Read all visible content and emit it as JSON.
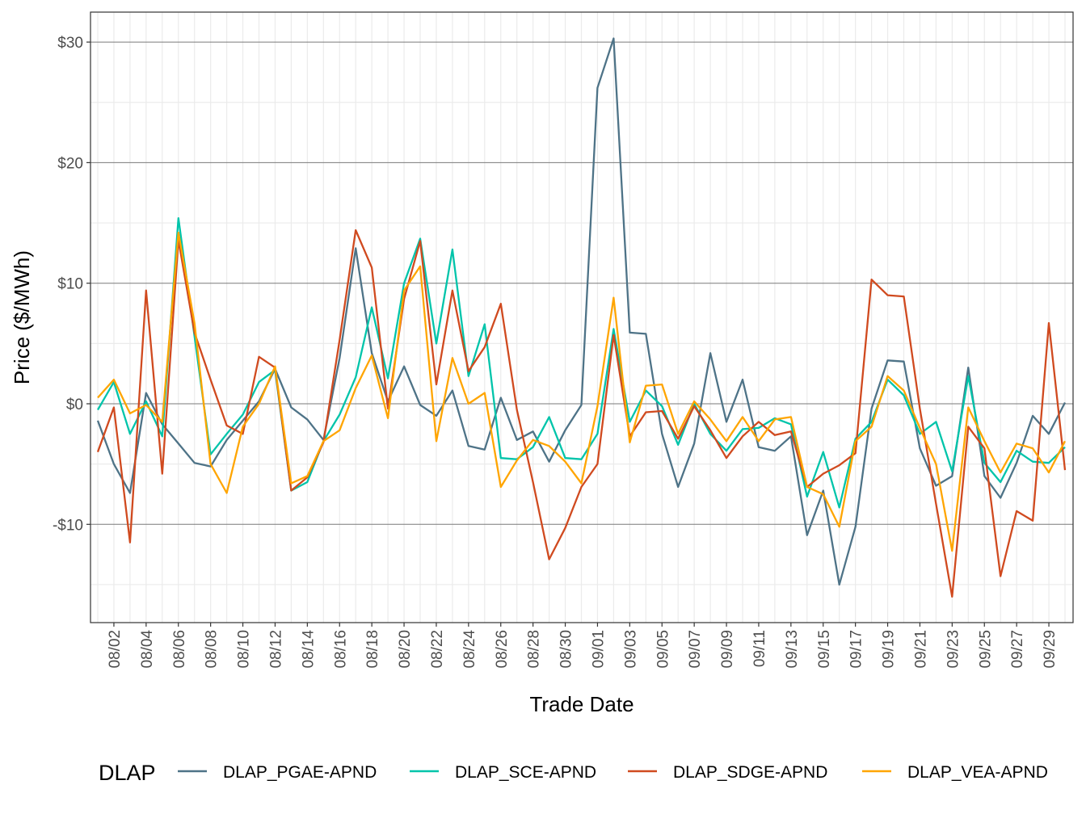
{
  "chart_data": {
    "type": "line",
    "title": "",
    "xlabel": "Trade Date",
    "ylabel": "Price ($/MWh)",
    "ylim": [
      -18,
      32
    ],
    "y_ticks": [
      -10,
      0,
      10,
      20,
      30
    ],
    "y_tick_labels": [
      "-$10",
      "$0",
      "$10",
      "$20",
      "$30"
    ],
    "grid": true,
    "legend_title": "DLAP",
    "legend_position": "bottom",
    "x": [
      "08/01",
      "08/02",
      "08/03",
      "08/04",
      "08/05",
      "08/06",
      "08/07",
      "08/08",
      "08/09",
      "08/10",
      "08/11",
      "08/12",
      "08/13",
      "08/14",
      "08/15",
      "08/16",
      "08/17",
      "08/18",
      "08/19",
      "08/20",
      "08/21",
      "08/22",
      "08/23",
      "08/24",
      "08/25",
      "08/26",
      "08/27",
      "08/28",
      "08/29",
      "08/30",
      "08/31",
      "09/01",
      "09/02",
      "09/03",
      "09/04",
      "09/05",
      "09/06",
      "09/07",
      "09/08",
      "09/09",
      "09/10",
      "09/11",
      "09/12",
      "09/13",
      "09/14",
      "09/15",
      "09/16",
      "09/17",
      "09/18",
      "09/19",
      "09/20",
      "09/21",
      "09/22",
      "09/23",
      "09/24",
      "09/25",
      "09/26",
      "09/27",
      "09/28",
      "09/29",
      "09/30"
    ],
    "x_tick_labels": [
      "08/02",
      "08/04",
      "08/06",
      "08/08",
      "08/10",
      "08/12",
      "08/14",
      "08/16",
      "08/18",
      "08/20",
      "08/22",
      "08/24",
      "08/26",
      "08/28",
      "08/30",
      "09/01",
      "09/03",
      "09/05",
      "09/07",
      "09/09",
      "09/11",
      "09/13",
      "09/15",
      "09/17",
      "09/19",
      "09/21",
      "09/23",
      "09/25",
      "09/27",
      "09/29"
    ],
    "series": [
      {
        "name": "DLAP_PGAE-APND",
        "color": "#4E7387",
        "values": [
          -1.4,
          -5.0,
          -7.4,
          0.9,
          -1.7,
          -3.3,
          -4.9,
          -5.2,
          -3.0,
          -1.4,
          0.2,
          2.9,
          -0.3,
          -1.3,
          -3.0,
          3.8,
          12.9,
          4.2,
          0.2,
          3.1,
          -0.1,
          -1.0,
          1.1,
          -3.5,
          -3.8,
          0.5,
          -3.0,
          -2.3,
          -4.8,
          -2.2,
          -0.1,
          26.2,
          30.3,
          5.9,
          5.8,
          -2.5,
          -6.9,
          -3.3,
          4.2,
          -1.5,
          2.0,
          -3.6,
          -3.9,
          -2.7,
          -10.9,
          -7.2,
          -15.0,
          -10.2,
          -0.4,
          3.6,
          3.5,
          -3.7,
          -6.8,
          -6.0,
          3.0,
          -6.0,
          -7.8,
          -4.9,
          -1.0,
          -2.5,
          0.1
        ]
      },
      {
        "name": "DLAP_SCE-APND",
        "color": "#00C4AA",
        "values": [
          -0.5,
          1.8,
          -2.5,
          0.2,
          -2.7,
          15.4,
          5.6,
          -4.2,
          -2.5,
          -0.9,
          1.8,
          2.8,
          -7.2,
          -6.5,
          -3.1,
          -0.9,
          2.2,
          8.0,
          2.1,
          10.0,
          13.7,
          5.0,
          12.8,
          2.3,
          6.6,
          -4.5,
          -4.6,
          -3.6,
          -1.1,
          -4.5,
          -4.6,
          -2.5,
          6.2,
          -1.5,
          1.1,
          -0.2,
          -3.4,
          0.0,
          -2.5,
          -3.9,
          -2.1,
          -2.0,
          -1.2,
          -1.7,
          -7.7,
          -4.0,
          -8.6,
          -2.9,
          -1.5,
          2.0,
          0.7,
          -2.5,
          -1.5,
          -5.6,
          2.3,
          -4.9,
          -6.5,
          -3.9,
          -4.8,
          -4.9,
          -3.6
        ]
      },
      {
        "name": "DLAP_SDGE-APND",
        "color": "#D04A1F",
        "values": [
          -4.0,
          -0.3,
          -11.5,
          9.4,
          -5.8,
          13.6,
          5.9,
          2.0,
          -1.8,
          -2.5,
          3.9,
          3.0,
          -7.2,
          -6.1,
          -3.2,
          5.3,
          14.4,
          11.3,
          -0.4,
          8.7,
          13.5,
          1.6,
          9.4,
          2.7,
          4.7,
          8.3,
          -0.5,
          -6.5,
          -12.9,
          -10.3,
          -6.9,
          -5.0,
          5.7,
          -2.7,
          -0.7,
          -0.6,
          -2.9,
          -0.2,
          -2.2,
          -4.5,
          -2.7,
          -1.5,
          -2.6,
          -2.3,
          -6.9,
          -5.8,
          -5.1,
          -4.1,
          10.3,
          9.0,
          8.9,
          -0.4,
          -8.3,
          -16.0,
          -1.9,
          -3.7,
          -14.3,
          -8.9,
          -9.7,
          6.7,
          -5.5
        ]
      },
      {
        "name": "DLAP_VEA-APND",
        "color": "#FFA500",
        "values": [
          0.5,
          2.0,
          -0.8,
          -0.1,
          -1.5,
          14.2,
          6.7,
          -5.0,
          -7.4,
          -1.9,
          0.0,
          3.1,
          -6.6,
          -6.0,
          -3.1,
          -2.2,
          1.3,
          4.0,
          -1.2,
          9.4,
          11.4,
          -3.1,
          3.8,
          0.0,
          0.9,
          -6.9,
          -4.7,
          -3.0,
          -3.5,
          -4.8,
          -6.6,
          -0.2,
          8.8,
          -3.2,
          1.5,
          1.6,
          -2.5,
          0.2,
          -1.3,
          -3.1,
          -1.1,
          -3.1,
          -1.3,
          -1.1,
          -6.9,
          -7.5,
          -10.2,
          -3.1,
          -1.9,
          2.3,
          1.1,
          -2.0,
          -5.0,
          -12.2,
          -0.3,
          -3.1,
          -5.7,
          -3.3,
          -3.7,
          -5.7,
          -3.1
        ]
      }
    ]
  }
}
